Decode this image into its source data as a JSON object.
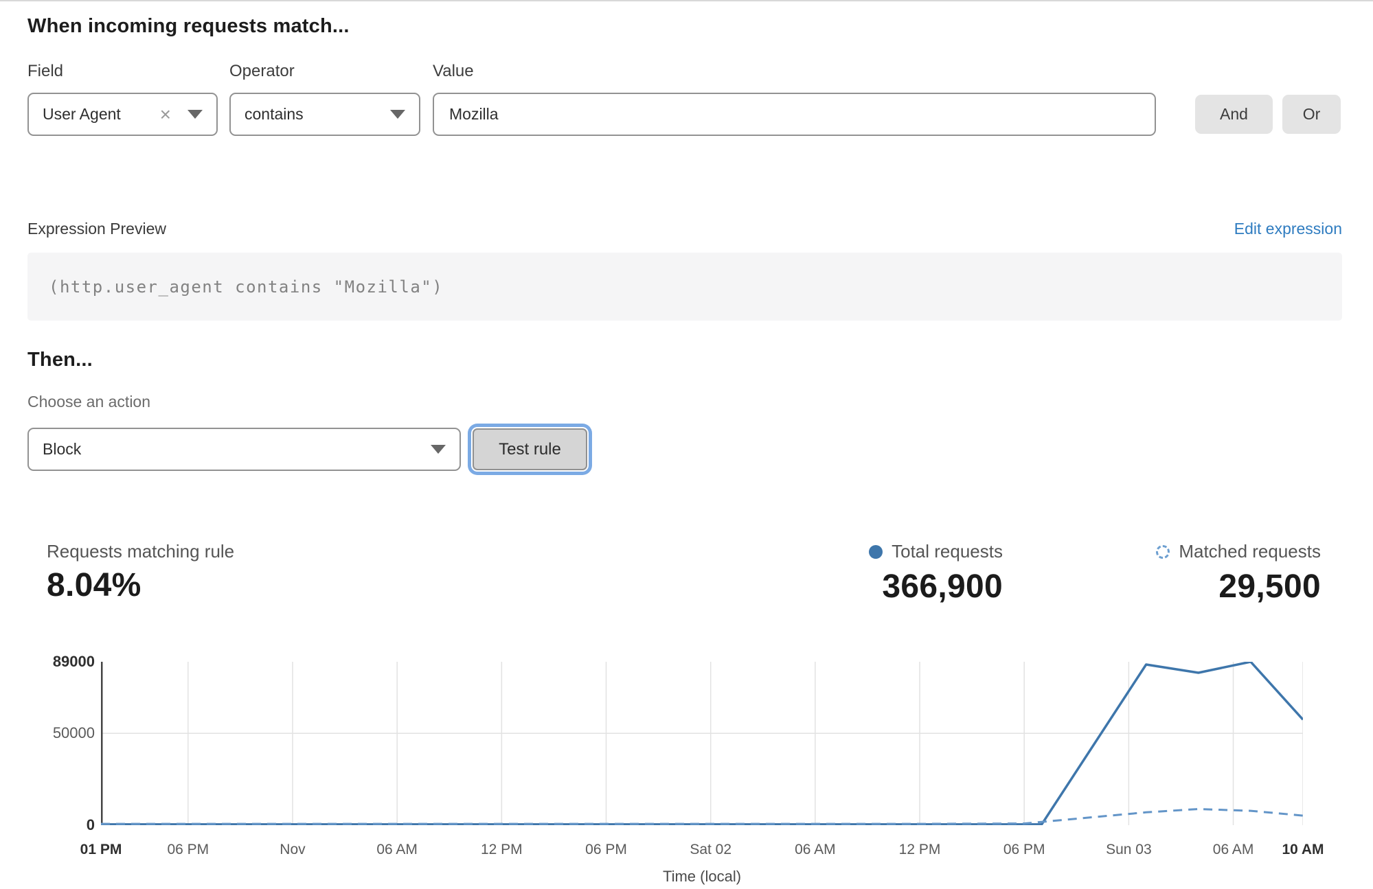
{
  "page": {
    "heading": "When incoming requests match...",
    "rule_builder": {
      "field_label": "Field",
      "operator_label": "Operator",
      "value_label": "Value",
      "field_value": "User Agent",
      "field_clear_icon": "×",
      "operator_value": "contains",
      "value_value": "Mozilla",
      "and_button": "And",
      "or_button": "Or"
    },
    "expression": {
      "label": "Expression Preview",
      "edit_link": "Edit expression",
      "code": "(http.user_agent contains \"Mozilla\")"
    },
    "then": {
      "heading": "Then...",
      "action_label": "Choose an action",
      "action_value": "Block",
      "test_button": "Test rule"
    },
    "stats": {
      "matching": {
        "label": "Requests matching rule",
        "value": "8.04%"
      },
      "total": {
        "label": "Total requests",
        "value": "366,900"
      },
      "matched": {
        "label": "Matched requests",
        "value": "29,500"
      }
    }
  },
  "colors": {
    "link_blue": "#2f7cc0",
    "chart_solid_blue": "#3e76ab",
    "chart_dashed_blue": "#6395c8",
    "focus_ring_blue": "#7baae4",
    "gridline_gray": "#e2e2e2",
    "axis_line_gray": "#444444",
    "button_gray": "#e4e4e4"
  },
  "chart_data": {
    "type": "line",
    "title": "",
    "xlabel": "Time (local)",
    "ylabel": "",
    "x_domain_hours": [
      0,
      69
    ],
    "ylim": [
      0,
      89000
    ],
    "grid": {
      "vertical": true,
      "horizontal_at": [
        50000
      ]
    },
    "y_ticks": [
      {
        "value": 89000,
        "label": "89000",
        "bold": true
      },
      {
        "value": 50000,
        "label": "50000",
        "bold": false
      },
      {
        "value": 0,
        "label": "0",
        "bold": true
      }
    ],
    "x_ticks": [
      {
        "hour": 0,
        "label": "01 PM",
        "bold": true
      },
      {
        "hour": 5,
        "label": "06 PM",
        "bold": false
      },
      {
        "hour": 11,
        "label": "Nov",
        "bold": false
      },
      {
        "hour": 17,
        "label": "06 AM",
        "bold": false
      },
      {
        "hour": 23,
        "label": "12 PM",
        "bold": false
      },
      {
        "hour": 29,
        "label": "06 PM",
        "bold": false
      },
      {
        "hour": 35,
        "label": "Sat 02",
        "bold": false
      },
      {
        "hour": 41,
        "label": "06 AM",
        "bold": false
      },
      {
        "hour": 47,
        "label": "12 PM",
        "bold": false
      },
      {
        "hour": 53,
        "label": "06 PM",
        "bold": false
      },
      {
        "hour": 59,
        "label": "Sun 03",
        "bold": false
      },
      {
        "hour": 65,
        "label": "06 AM",
        "bold": false
      },
      {
        "hour": 69,
        "label": "10 AM",
        "bold": true
      }
    ],
    "series": [
      {
        "name": "Total requests",
        "style": "solid",
        "color": "#3e76ab",
        "points_hour_value": [
          [
            0,
            400
          ],
          [
            5,
            400
          ],
          [
            11,
            400
          ],
          [
            17,
            400
          ],
          [
            23,
            400
          ],
          [
            29,
            400
          ],
          [
            35,
            400
          ],
          [
            41,
            400
          ],
          [
            47,
            400
          ],
          [
            53,
            400
          ],
          [
            54,
            400
          ],
          [
            60,
            87500
          ],
          [
            63,
            83000
          ],
          [
            66,
            89000
          ],
          [
            69,
            57500
          ]
        ]
      },
      {
        "name": "Matched requests",
        "style": "dashed",
        "color": "#6395c8",
        "points_hour_value": [
          [
            0,
            700
          ],
          [
            5,
            700
          ],
          [
            11,
            700
          ],
          [
            17,
            700
          ],
          [
            23,
            700
          ],
          [
            29,
            700
          ],
          [
            35,
            700
          ],
          [
            41,
            700
          ],
          [
            47,
            700
          ],
          [
            53,
            900
          ],
          [
            56,
            3500
          ],
          [
            60,
            7000
          ],
          [
            63,
            8800
          ],
          [
            66,
            7800
          ],
          [
            69,
            5200
          ]
        ]
      }
    ],
    "legend_position": "top-right"
  }
}
